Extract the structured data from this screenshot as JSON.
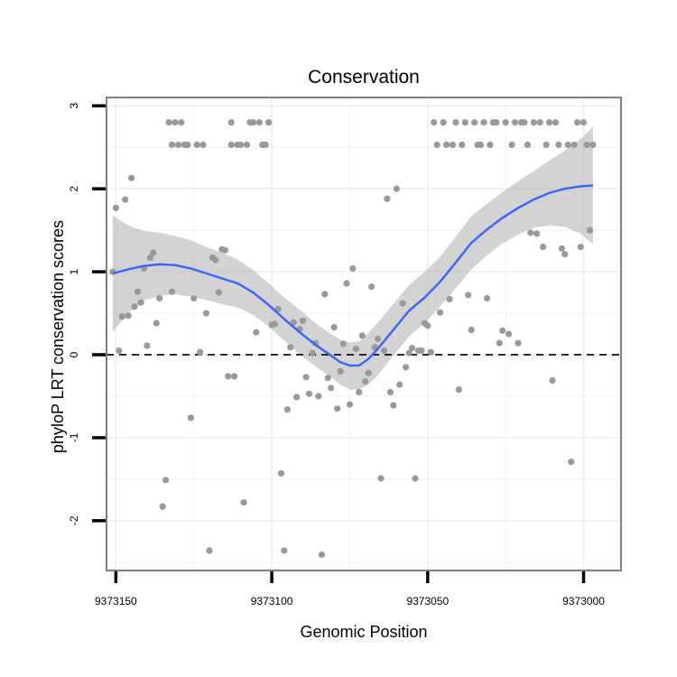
{
  "chart_data": {
    "type": "scatter",
    "title": "Conservation",
    "xlabel": "Genomic Position",
    "ylabel": "phyloP LRT conservation scores",
    "x_reversed": true,
    "xlim": [
      9373153,
      9372988
    ],
    "ylim": [
      -2.6,
      3.1
    ],
    "x_ticks": [
      9373150,
      9373100,
      9373050,
      9373000
    ],
    "x_tick_labels": [
      "9373150",
      "9373100",
      "9373050",
      "9373000"
    ],
    "y_ticks": [
      -2,
      -1,
      0,
      1,
      2,
      3
    ],
    "y_tick_labels": [
      "-2",
      "-1",
      "0",
      "1",
      "2",
      "3"
    ],
    "reference_line": {
      "y": 0,
      "style": "dashed"
    },
    "grid": true,
    "colors": {
      "points": "#999999",
      "smooth_line": "#3366FF",
      "ribbon": "#BBBBBB",
      "border": "#7F7F7F",
      "grid": "#EBEBEB",
      "reference_line": "#000000"
    },
    "series": [
      {
        "name": "scores",
        "points": [
          [
            9373151,
            1.0
          ],
          [
            9373150,
            1.77
          ],
          [
            9373149,
            0.05
          ],
          [
            9373148,
            0.46
          ],
          [
            9373147,
            1.87
          ],
          [
            9373146,
            0.47
          ],
          [
            9373145,
            2.13
          ],
          [
            9373144,
            0.58
          ],
          [
            9373143,
            0.76
          ],
          [
            9373142,
            0.63
          ],
          [
            9373141,
            1.04
          ],
          [
            9373140,
            0.11
          ],
          [
            9373139,
            1.17
          ],
          [
            9373138,
            1.23
          ],
          [
            9373137,
            0.38
          ],
          [
            9373136,
            0.68
          ],
          [
            9373135,
            -1.83
          ],
          [
            9373134,
            -1.51
          ],
          [
            9373133,
            2.8
          ],
          [
            9373132,
            2.53
          ],
          [
            9373132,
            0.76
          ],
          [
            9373131,
            2.8
          ],
          [
            9373130,
            2.53
          ],
          [
            9373129,
            2.8
          ],
          [
            9373128,
            2.53
          ],
          [
            9373127,
            2.53
          ],
          [
            9373126,
            -0.76
          ],
          [
            9373125,
            0.68
          ],
          [
            9373124,
            2.53
          ],
          [
            9373123,
            0.03
          ],
          [
            9373122,
            2.53
          ],
          [
            9373121,
            0.5
          ],
          [
            9373120,
            -2.36
          ],
          [
            9373119,
            1.17
          ],
          [
            9373118,
            1.14
          ],
          [
            9373117,
            0.75
          ],
          [
            9373116,
            1.27
          ],
          [
            9373115,
            1.26
          ],
          [
            9373114,
            -0.26
          ],
          [
            9373113,
            2.8
          ],
          [
            9373113,
            2.53
          ],
          [
            9373112,
            -0.26
          ],
          [
            9373111,
            2.53
          ],
          [
            9373110,
            2.53
          ],
          [
            9373109,
            -1.78
          ],
          [
            9373108,
            2.53
          ],
          [
            9373107,
            2.8
          ],
          [
            9373106,
            2.8
          ],
          [
            9373105,
            0.27
          ],
          [
            9373104,
            2.8
          ],
          [
            9373103,
            2.53
          ],
          [
            9373102,
            2.53
          ],
          [
            9373101,
            2.8
          ],
          [
            9373100,
            0.36
          ],
          [
            9373099,
            0.37
          ],
          [
            9373098,
            0.55
          ],
          [
            9373097,
            -1.43
          ],
          [
            9373096,
            -2.36
          ],
          [
            9373095,
            -0.66
          ],
          [
            9373094,
            0.09
          ],
          [
            9373093,
            0.39
          ],
          [
            9373092,
            -0.51
          ],
          [
            9373091,
            0.31
          ],
          [
            9373090,
            0.41
          ],
          [
            9373089,
            -0.27
          ],
          [
            9373088,
            -0.47
          ],
          [
            9373087,
            0.02
          ],
          [
            9373086,
            0.14
          ],
          [
            9373085,
            -0.5
          ],
          [
            9373084,
            -2.41
          ],
          [
            9373083,
            0.73
          ],
          [
            9373082,
            -0.28
          ],
          [
            9373081,
            -0.4
          ],
          [
            9373080,
            0.33
          ],
          [
            9373079,
            -0.65
          ],
          [
            9373078,
            -0.2
          ],
          [
            9373077,
            0.13
          ],
          [
            9373076,
            0.86
          ],
          [
            9373075,
            -0.6
          ],
          [
            9373074,
            1.04
          ],
          [
            9373073,
            0.07
          ],
          [
            9373072,
            -0.45
          ],
          [
            9373071,
            0.23
          ],
          [
            9373070,
            -0.32
          ],
          [
            9373069,
            -0.22
          ],
          [
            9373068,
            0.82
          ],
          [
            9373067,
            0.09
          ],
          [
            9373066,
            0.19
          ],
          [
            9373065,
            -1.49
          ],
          [
            9373064,
            0.05
          ],
          [
            9373063,
            1.88
          ],
          [
            9373062,
            -0.45
          ],
          [
            9373061,
            -0.61
          ],
          [
            9373060,
            2.0
          ],
          [
            9373059,
            -0.36
          ],
          [
            9373058,
            0.62
          ],
          [
            9373057,
            -0.15
          ],
          [
            9373056,
            0.02
          ],
          [
            9373055,
            0.08
          ],
          [
            9373054,
            -1.49
          ],
          [
            9373053,
            0.05
          ],
          [
            9373052,
            0.05
          ],
          [
            9373051,
            0.38
          ],
          [
            9373050,
            0.35
          ],
          [
            9373049,
            0.03
          ],
          [
            9373048,
            2.8
          ],
          [
            9373047,
            2.53
          ],
          [
            9373046,
            0.51
          ],
          [
            9373045,
            2.8
          ],
          [
            9373044,
            2.53
          ],
          [
            9373043,
            0.67
          ],
          [
            9373042,
            2.53
          ],
          [
            9373041,
            2.8
          ],
          [
            9373040,
            -0.42
          ],
          [
            9373039,
            2.53
          ],
          [
            9373038,
            2.8
          ],
          [
            9373037,
            0.72
          ],
          [
            9373036,
            0.3
          ],
          [
            9373035,
            2.8
          ],
          [
            9373034,
            2.53
          ],
          [
            9373033,
            2.53
          ],
          [
            9373032,
            2.8
          ],
          [
            9373031,
            0.68
          ],
          [
            9373030,
            2.53
          ],
          [
            9373029,
            2.8
          ],
          [
            9373028,
            2.8
          ],
          [
            9373027,
            0.14
          ],
          [
            9373026,
            0.29
          ],
          [
            9373025,
            2.8
          ],
          [
            9373024,
            0.25
          ],
          [
            9373023,
            2.53
          ],
          [
            9373022,
            2.8
          ],
          [
            9373021,
            0.14
          ],
          [
            9373020,
            2.8
          ],
          [
            9373019,
            2.8
          ],
          [
            9373018,
            2.53
          ],
          [
            9373017,
            1.47
          ],
          [
            9373016,
            2.8
          ],
          [
            9373015,
            1.46
          ],
          [
            9373014,
            2.8
          ],
          [
            9373013,
            1.3
          ],
          [
            9373012,
            2.53
          ],
          [
            9373011,
            2.8
          ],
          [
            9373010,
            -0.31
          ],
          [
            9373009,
            2.8
          ],
          [
            9373008,
            2.53
          ],
          [
            9373007,
            1.28
          ],
          [
            9373006,
            1.21
          ],
          [
            9373005,
            2.53
          ],
          [
            9373004,
            -1.29
          ],
          [
            9373003,
            2.53
          ],
          [
            9373002,
            2.8
          ],
          [
            9373001,
            1.3
          ],
          [
            9373000,
            2.8
          ],
          [
            9372999,
            2.53
          ],
          [
            9372998,
            1.5
          ],
          [
            9372997,
            2.53
          ]
        ]
      },
      {
        "name": "smooth",
        "points": [
          [
            9373151,
            0.98
          ],
          [
            9373146,
            1.03
          ],
          [
            9373141,
            1.07
          ],
          [
            9373136,
            1.09
          ],
          [
            9373131,
            1.08
          ],
          [
            9373126,
            1.04
          ],
          [
            9373121,
            0.98
          ],
          [
            9373116,
            0.92
          ],
          [
            9373111,
            0.86
          ],
          [
            9373106,
            0.75
          ],
          [
            9373101,
            0.6
          ],
          [
            9373096,
            0.43
          ],
          [
            9373091,
            0.27
          ],
          [
            9373086,
            0.12
          ],
          [
            9373081,
            -0.01
          ],
          [
            9373078,
            -0.09
          ],
          [
            9373075,
            -0.13
          ],
          [
            9373072,
            -0.13
          ],
          [
            9373069,
            -0.05
          ],
          [
            9373066,
            0.07
          ],
          [
            9373061,
            0.3
          ],
          [
            9373056,
            0.53
          ],
          [
            9373051,
            0.69
          ],
          [
            9373046,
            0.88
          ],
          [
            9373041,
            1.11
          ],
          [
            9373036,
            1.35
          ],
          [
            9373031,
            1.51
          ],
          [
            9373026,
            1.65
          ],
          [
            9373021,
            1.77
          ],
          [
            9373016,
            1.87
          ],
          [
            9373011,
            1.95
          ],
          [
            9373006,
            2.0
          ],
          [
            9373001,
            2.03
          ],
          [
            9372997,
            2.04
          ]
        ]
      },
      {
        "name": "confidence_band",
        "upper": [
          [
            9373151,
            1.68
          ],
          [
            9373146,
            1.56
          ],
          [
            9373141,
            1.49
          ],
          [
            9373136,
            1.47
          ],
          [
            9373131,
            1.43
          ],
          [
            9373126,
            1.38
          ],
          [
            9373121,
            1.3
          ],
          [
            9373116,
            1.23
          ],
          [
            9373111,
            1.15
          ],
          [
            9373106,
            1.02
          ],
          [
            9373101,
            0.86
          ],
          [
            9373096,
            0.69
          ],
          [
            9373091,
            0.54
          ],
          [
            9373086,
            0.38
          ],
          [
            9373081,
            0.25
          ],
          [
            9373078,
            0.18
          ],
          [
            9373075,
            0.15
          ],
          [
            9373072,
            0.16
          ],
          [
            9373069,
            0.26
          ],
          [
            9373066,
            0.39
          ],
          [
            9373061,
            0.61
          ],
          [
            9373056,
            0.84
          ],
          [
            9373051,
            1.0
          ],
          [
            9373046,
            1.18
          ],
          [
            9373041,
            1.42
          ],
          [
            9373036,
            1.67
          ],
          [
            9373031,
            1.82
          ],
          [
            9373026,
            1.96
          ],
          [
            9373021,
            2.09
          ],
          [
            9373016,
            2.21
          ],
          [
            9373011,
            2.34
          ],
          [
            9373006,
            2.46
          ],
          [
            9373001,
            2.6
          ],
          [
            9372997,
            2.75
          ]
        ],
        "lower": [
          [
            9373151,
            0.28
          ],
          [
            9373146,
            0.5
          ],
          [
            9373141,
            0.65
          ],
          [
            9373136,
            0.71
          ],
          [
            9373131,
            0.73
          ],
          [
            9373126,
            0.7
          ],
          [
            9373121,
            0.66
          ],
          [
            9373116,
            0.61
          ],
          [
            9373111,
            0.57
          ],
          [
            9373106,
            0.48
          ],
          [
            9373101,
            0.34
          ],
          [
            9373096,
            0.17
          ],
          [
            9373091,
            0.0
          ],
          [
            9373086,
            -0.14
          ],
          [
            9373081,
            -0.27
          ],
          [
            9373078,
            -0.36
          ],
          [
            9373075,
            -0.42
          ],
          [
            9373072,
            -0.42
          ],
          [
            9373069,
            -0.36
          ],
          [
            9373066,
            -0.25
          ],
          [
            9373061,
            -0.01
          ],
          [
            9373056,
            0.22
          ],
          [
            9373051,
            0.38
          ],
          [
            9373046,
            0.58
          ],
          [
            9373041,
            0.8
          ],
          [
            9373036,
            1.03
          ],
          [
            9373031,
            1.2
          ],
          [
            9373026,
            1.34
          ],
          [
            9373021,
            1.45
          ],
          [
            9373016,
            1.53
          ],
          [
            9373011,
            1.56
          ],
          [
            9373006,
            1.54
          ],
          [
            9373001,
            1.46
          ],
          [
            9372997,
            1.33
          ]
        ]
      }
    ]
  }
}
